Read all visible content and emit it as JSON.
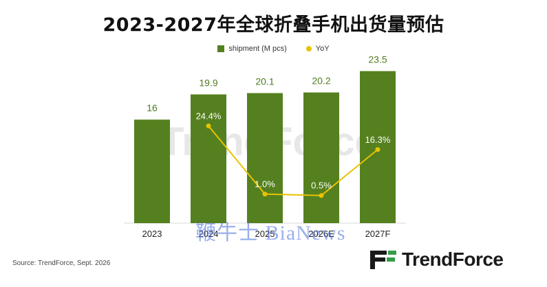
{
  "title": "2023-2027年全球折叠手机出货量预估",
  "legend": {
    "shipment_label": "shipment (M pcs)",
    "yoy_label": "YoY"
  },
  "colors": {
    "bar": "#55801f",
    "bar_label": "#4f7a1c",
    "yoy_line": "#e8c200",
    "yoy_label": "#ffffff"
  },
  "chart_data": {
    "type": "bar",
    "title": "2023-2027年全球折叠手机出货量预估",
    "categories": [
      "2023",
      "2024",
      "2025",
      "2026E",
      "2027F"
    ],
    "series": [
      {
        "name": "shipment (M pcs)",
        "type": "bar",
        "values": [
          16,
          19.9,
          20.1,
          20.2,
          23.5
        ],
        "labels": [
          "16",
          "19.9",
          "20.1",
          "20.2",
          "23.5"
        ]
      },
      {
        "name": "YoY",
        "type": "line",
        "values": [
          null,
          24.4,
          1.0,
          0.5,
          16.3
        ],
        "labels": [
          "",
          "24.4%",
          "1.0%",
          "0.5%",
          "16.3%"
        ]
      }
    ],
    "ylim": [
      0,
      26
    ],
    "yoy_ylim": [
      -9,
      37
    ],
    "grid": false,
    "legend_position": "top-center",
    "xlabel": "",
    "ylabel": ""
  },
  "watermark_text": "TrendForce",
  "overlay_watermark": "鞭牛士 BiaNews",
  "source": "Source: TrendForce, Sept. 2026",
  "brand": "TrendForce"
}
